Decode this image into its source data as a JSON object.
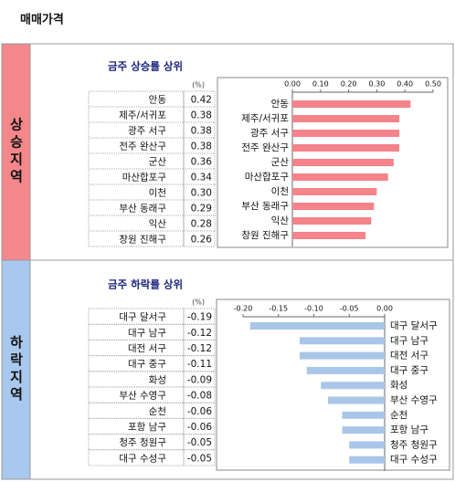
{
  "header": {
    "title": "매매가격"
  },
  "chart_data": [
    {
      "type": "bar",
      "orientation": "horizontal",
      "section_label": "상승지역",
      "section_color": "#f4878c",
      "section_text_color": "#ffffff",
      "title": "금주 상승률 상위",
      "unit": "(%)",
      "color": "#f4838a",
      "categories": [
        "안동",
        "제주/서귀포",
        "광주 서구",
        "전주 완산구",
        "군산",
        "마산합포구",
        "이천",
        "부산 동래구",
        "익산",
        "창원 진해구"
      ],
      "values": [
        0.42,
        0.38,
        0.38,
        0.38,
        0.36,
        0.34,
        0.3,
        0.29,
        0.28,
        0.26
      ],
      "value_labels": [
        "0.42",
        "0.38",
        "0.38",
        "0.38",
        "0.36",
        "0.34",
        "0.30",
        "0.29",
        "0.28",
        "0.26"
      ],
      "xlim": [
        0,
        0.5
      ],
      "xticks": [
        {
          "value": 0,
          "label": "0.00"
        },
        {
          "value": 0.1,
          "label": "0.10"
        },
        {
          "value": 0.2,
          "label": "0.20"
        },
        {
          "value": 0.3,
          "label": "0.30"
        },
        {
          "value": 0.4,
          "label": "0.40"
        },
        {
          "value": 0.5,
          "label": "0.50"
        }
      ]
    },
    {
      "type": "bar",
      "orientation": "horizontal",
      "section_label": "하락지역",
      "section_color": "#a9c8ee",
      "section_text_color": "#1a237e",
      "title": "금주 하락률 상위",
      "unit": "(%)",
      "color": "#a9c6e8",
      "categories": [
        "대구 달서구",
        "대구 남구",
        "대전 서구",
        "대구 중구",
        "화성",
        "부산 수영구",
        "순천",
        "포항 남구",
        "청주 청원구",
        "대구 수성구"
      ],
      "values": [
        -0.19,
        -0.12,
        -0.12,
        -0.11,
        -0.09,
        -0.08,
        -0.06,
        -0.06,
        -0.05,
        -0.05
      ],
      "value_labels": [
        "-0.19",
        "-0.12",
        "-0.12",
        "-0.11",
        "-0.09",
        "-0.08",
        "-0.06",
        "-0.06",
        "-0.05",
        "-0.05"
      ],
      "xlim": [
        -0.2,
        0
      ],
      "xticks": [
        {
          "value": -0.2,
          "label": "-0.20"
        },
        {
          "value": -0.15,
          "label": "-0.15"
        },
        {
          "value": -0.1,
          "label": "-0.10"
        },
        {
          "value": -0.05,
          "label": "-0.05"
        },
        {
          "value": 0,
          "label": "0.00"
        }
      ]
    }
  ]
}
